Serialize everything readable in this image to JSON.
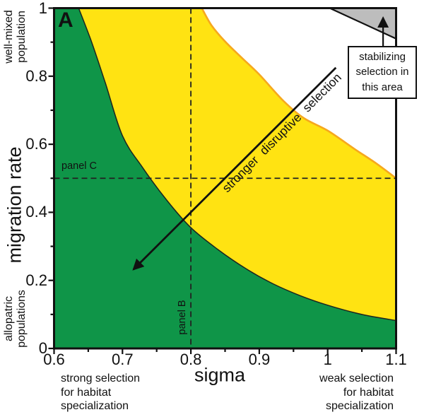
{
  "figure": {
    "panel_label": "A",
    "colors": {
      "green": "#0F9548",
      "yellow": "#FFE312",
      "orange_edge": "#F6A81E",
      "gray": "#BDBDBD",
      "ink": "#111111"
    },
    "axes": {
      "xlabel": "sigma",
      "ylabel": "migration rate",
      "x_tick_labels": [
        "0.6",
        "0.7",
        "0.8",
        "0.9",
        "1",
        "1.1"
      ],
      "x_tick_values": [
        0.6,
        0.7,
        0.8,
        0.9,
        1.0,
        1.1
      ],
      "x_minor_ticks": [
        0.65,
        0.75,
        0.85,
        0.95,
        1.05
      ],
      "y_tick_labels": [
        "1",
        "0.8",
        "0.6",
        "0.4",
        "0.2",
        "0"
      ],
      "y_tick_values": [
        1.0,
        0.8,
        0.6,
        0.4,
        0.2,
        0
      ],
      "y_minor_ticks": [
        0.1,
        0.3,
        0.5,
        0.7,
        0.9
      ]
    },
    "annotations": {
      "well_mixed": "well-mixed\npopulation",
      "allopatric": "allopatric\npopulations",
      "strong_selection": "strong selection\nfor habitat\nspecialization",
      "weak_selection": "weak selection\nfor habitat\nspecialization",
      "panel_c": "panel C",
      "panel_b": "panel B",
      "disruptive": "stronger disruptive selection",
      "stabilizing": "stabilizing\nselection in\nthis area"
    }
  },
  "chart_data": {
    "type": "area",
    "title": "",
    "xlabel": "sigma",
    "ylabel": "migration rate",
    "xlim": [
      0.6,
      1.1
    ],
    "ylim": [
      0,
      1
    ],
    "grid": false,
    "regions": [
      {
        "name": "green region (below lower boundary)",
        "color": "#0F9548"
      },
      {
        "name": "yellow region (between boundaries)",
        "color": "#FFE312"
      },
      {
        "name": "white region (above upper boundary)",
        "color": "#FFFFFF"
      },
      {
        "name": "stabilizing selection triangle",
        "color": "#BDBDBD",
        "vertices_x": [
          1.003,
          1.1,
          1.1
        ],
        "vertices_y": [
          1.0,
          1.0,
          0.91
        ]
      }
    ],
    "series": [
      {
        "name": "green_yellow_boundary",
        "x": [
          0.636,
          0.655,
          0.675,
          0.7,
          0.73,
          0.765,
          0.8,
          0.84,
          0.88,
          0.92,
          0.96,
          1.0,
          1.05,
          1.1
        ],
        "y": [
          1.0,
          0.9,
          0.78,
          0.625,
          0.53,
          0.435,
          0.355,
          0.29,
          0.235,
          0.19,
          0.155,
          0.127,
          0.1,
          0.082
        ]
      },
      {
        "name": "yellow_white_boundary",
        "x": [
          0.816,
          0.83,
          0.85,
          0.875,
          0.9,
          0.935,
          0.965,
          1.0,
          1.04,
          1.07,
          1.1
        ],
        "y": [
          1.0,
          0.95,
          0.902,
          0.853,
          0.805,
          0.728,
          0.677,
          0.64,
          0.585,
          0.545,
          0.5
        ]
      }
    ],
    "reference_lines": [
      {
        "axis": "x",
        "value": 0.8,
        "label": "panel B"
      },
      {
        "axis": "y",
        "value": 0.5,
        "label": "panel C"
      }
    ],
    "arrows": [
      {
        "name": "stronger-disruptive-selection",
        "from_x": 1.012,
        "from_y": 0.825,
        "to_x": 0.716,
        "to_y": 0.232,
        "width": 2.8
      },
      {
        "name": "stabilizing-area-pointer",
        "from_x": 1.081,
        "from_y": 0.883,
        "to_x": 1.081,
        "to_y": 0.972,
        "width": 2.2
      }
    ]
  }
}
